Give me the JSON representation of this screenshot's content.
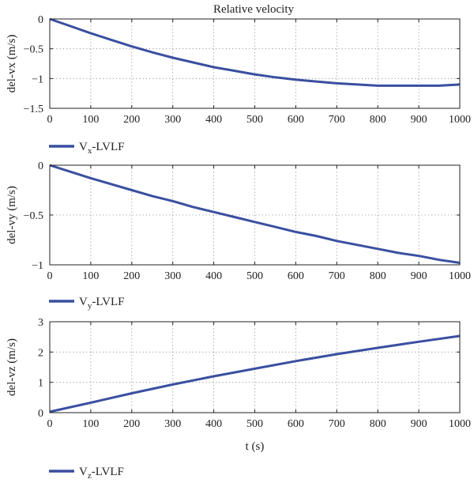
{
  "title": "Relative velocity",
  "series_color": "#3A4FA0",
  "chart_data": [
    {
      "type": "line",
      "ylabel": "del-vx (m/s)",
      "xlabel": "",
      "xlim": [
        0,
        1000
      ],
      "ylim": [
        -1.5,
        0
      ],
      "xticks": [
        0,
        100,
        200,
        300,
        400,
        500,
        600,
        700,
        800,
        900,
        1000
      ],
      "yticks": [
        0,
        -0.5,
        -1,
        -1.5
      ],
      "ytick_labels": [
        "0",
        "−0.5",
        "−1",
        "−1.5"
      ],
      "grid": true,
      "legend": {
        "placement": "below-left",
        "label": "V",
        "sub": "x",
        "suffix": "-LVLF"
      },
      "series": [
        {
          "x": [
            0,
            50,
            100,
            150,
            200,
            250,
            300,
            350,
            400,
            450,
            500,
            550,
            600,
            650,
            700,
            750,
            800,
            850,
            900,
            950,
            1000
          ],
          "y": [
            0,
            -0.12,
            -0.24,
            -0.35,
            -0.46,
            -0.56,
            -0.65,
            -0.73,
            -0.81,
            -0.87,
            -0.93,
            -0.98,
            -1.02,
            -1.05,
            -1.08,
            -1.1,
            -1.12,
            -1.12,
            -1.12,
            -1.12,
            -1.1
          ]
        }
      ]
    },
    {
      "type": "line",
      "ylabel": "del-vy (m/s)",
      "xlabel": "",
      "xlim": [
        0,
        1000
      ],
      "ylim": [
        -1,
        0
      ],
      "xticks": [
        0,
        100,
        200,
        300,
        400,
        500,
        600,
        700,
        800,
        900,
        1000
      ],
      "yticks": [
        0,
        -0.5,
        -1
      ],
      "ytick_labels": [
        "0",
        "−0.5",
        "−1"
      ],
      "grid": true,
      "legend": {
        "placement": "below-left",
        "label": "V",
        "sub": "y",
        "suffix": "-LVLF"
      },
      "series": [
        {
          "x": [
            0,
            50,
            100,
            150,
            200,
            250,
            300,
            350,
            400,
            450,
            500,
            550,
            600,
            650,
            700,
            750,
            800,
            850,
            900,
            950,
            1000
          ],
          "y": [
            0,
            -0.065,
            -0.13,
            -0.19,
            -0.25,
            -0.31,
            -0.36,
            -0.42,
            -0.47,
            -0.52,
            -0.57,
            -0.62,
            -0.67,
            -0.71,
            -0.76,
            -0.8,
            -0.84,
            -0.88,
            -0.91,
            -0.95,
            -0.98
          ]
        }
      ]
    },
    {
      "type": "line",
      "ylabel": "del-vz (m/s)",
      "xlabel": "t (s)",
      "xlim": [
        0,
        1000
      ],
      "ylim": [
        0,
        3
      ],
      "xticks": [
        0,
        100,
        200,
        300,
        400,
        500,
        600,
        700,
        800,
        900,
        1000
      ],
      "yticks": [
        0,
        1,
        2,
        3
      ],
      "ytick_labels": [
        "0",
        "1",
        "2",
        "3"
      ],
      "grid": true,
      "legend": {
        "placement": "below-left",
        "label": "V",
        "sub": "z",
        "suffix": "-LVLF"
      },
      "series": [
        {
          "x": [
            0,
            100,
            200,
            300,
            400,
            500,
            600,
            700,
            800,
            900,
            1000
          ],
          "y": [
            0.03,
            0.33,
            0.64,
            0.93,
            1.2,
            1.45,
            1.7,
            1.93,
            2.14,
            2.34,
            2.53
          ]
        }
      ]
    }
  ]
}
